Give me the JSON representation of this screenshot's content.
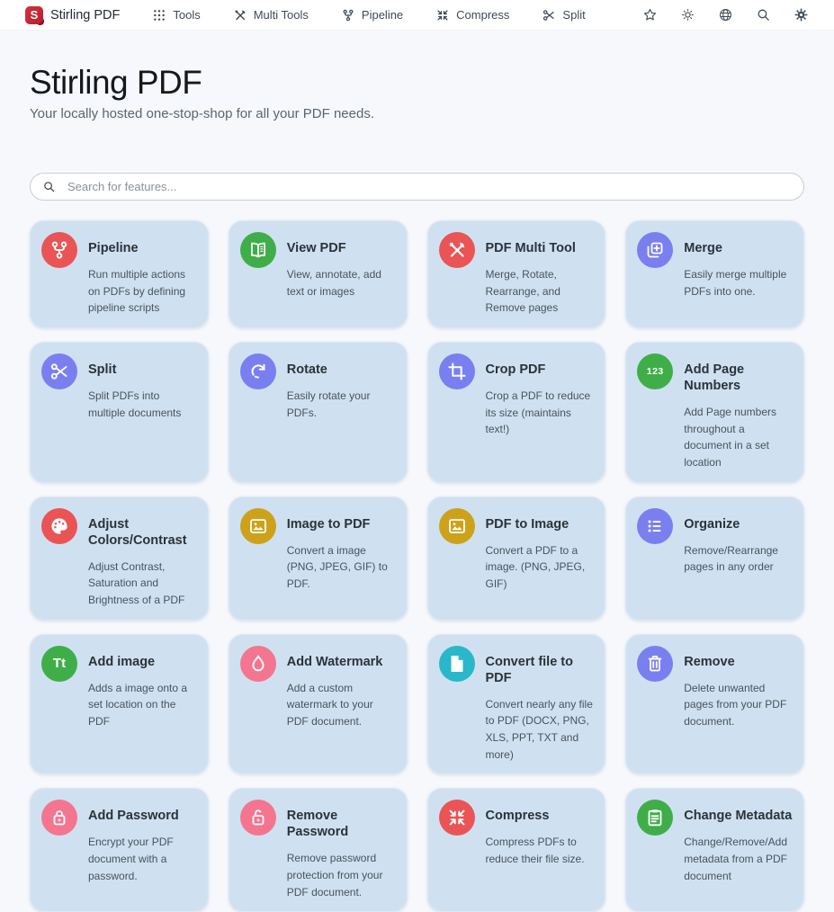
{
  "nav": {
    "brand": "Stirling PDF",
    "logo_letter": "S",
    "items": [
      {
        "label": "Tools",
        "icon": "apps-grid-icon"
      },
      {
        "label": "Multi Tools",
        "icon": "tools-icon"
      },
      {
        "label": "Pipeline",
        "icon": "pipeline-icon"
      },
      {
        "label": "Compress",
        "icon": "compress-icon"
      },
      {
        "label": "Split",
        "icon": "scissors-icon"
      }
    ],
    "actions": [
      {
        "name": "favourites",
        "icon": "star-icon"
      },
      {
        "name": "theme-toggle",
        "icon": "sun-icon"
      },
      {
        "name": "language",
        "icon": "globe-icon"
      },
      {
        "name": "search",
        "icon": "search-icon"
      },
      {
        "name": "settings",
        "icon": "gear-icon"
      }
    ]
  },
  "hero": {
    "title": "Stirling PDF",
    "subtitle": "Your locally hosted one-stop-shop for all your PDF needs."
  },
  "search": {
    "placeholder": "Search for features..."
  },
  "colors": {
    "red": "#ea5455",
    "green": "#3fae49",
    "purple": "#7a7ff0",
    "gold": "#cda21a",
    "pink": "#f4758f",
    "cyan": "#2ab7ca",
    "card_bg": "#cfe1f1",
    "brand_red": "#c5283b"
  },
  "cards": [
    {
      "title": "Pipeline",
      "description": "Run multiple actions on PDFs by defining pipeline scripts",
      "icon": "pipeline-icon",
      "color": "red"
    },
    {
      "title": "View PDF",
      "description": "View, annotate, add text or images",
      "icon": "book-open-icon",
      "color": "green"
    },
    {
      "title": "PDF Multi Tool",
      "description": "Merge, Rotate, Rearrange, and Remove pages",
      "icon": "tools-icon",
      "color": "red"
    },
    {
      "title": "Merge",
      "description": "Easily merge multiple PDFs into one.",
      "icon": "merge-icon",
      "color": "purple"
    },
    {
      "title": "Split",
      "description": "Split PDFs into multiple documents",
      "icon": "scissors-icon",
      "color": "purple"
    },
    {
      "title": "Rotate",
      "description": "Easily rotate your PDFs.",
      "icon": "rotate-icon",
      "color": "purple"
    },
    {
      "title": "Crop PDF",
      "description": "Crop a PDF to reduce its size (maintains text!)",
      "icon": "crop-icon",
      "color": "purple"
    },
    {
      "title": "Add Page Numbers",
      "description": "Add Page numbers throughout a document in a set location",
      "icon": "numbers-123-icon",
      "color": "green"
    },
    {
      "title": "Adjust Colors/Contrast",
      "description": "Adjust Contrast, Saturation and Brightness of a PDF",
      "icon": "palette-icon",
      "color": "red"
    },
    {
      "title": "Image to PDF",
      "description": "Convert a image (PNG, JPEG, GIF) to PDF.",
      "icon": "image-icon",
      "color": "gold"
    },
    {
      "title": "PDF to Image",
      "description": "Convert a PDF to a image. (PNG, JPEG, GIF)",
      "icon": "image-icon",
      "color": "gold"
    },
    {
      "title": "Organize",
      "description": "Remove/Rearrange pages in any order",
      "icon": "list-bullets-icon",
      "color": "purple"
    },
    {
      "title": "Add image",
      "description": "Adds a image onto a set location on the PDF",
      "icon": "text-size-icon",
      "color": "green"
    },
    {
      "title": "Add Watermark",
      "description": "Add a custom watermark to your PDF document.",
      "icon": "water-drop-icon",
      "color": "pink"
    },
    {
      "title": "Convert file to PDF",
      "description": "Convert nearly any file to PDF (DOCX, PNG, XLS, PPT, TXT and more)",
      "icon": "file-icon",
      "color": "cyan"
    },
    {
      "title": "Remove",
      "description": "Delete unwanted pages from your PDF document.",
      "icon": "trash-icon",
      "color": "purple"
    },
    {
      "title": "Add Password",
      "description": "Encrypt your PDF document with a password.",
      "icon": "lock-icon",
      "color": "pink"
    },
    {
      "title": "Remove Password",
      "description": "Remove password protection from your PDF document.",
      "icon": "lock-open-icon",
      "color": "pink"
    },
    {
      "title": "Compress",
      "description": "Compress PDFs to reduce their file size.",
      "icon": "compress-icon",
      "color": "red"
    },
    {
      "title": "Change Metadata",
      "description": "Change/Remove/Add metadata from a PDF document",
      "icon": "clipboard-icon",
      "color": "green"
    }
  ]
}
